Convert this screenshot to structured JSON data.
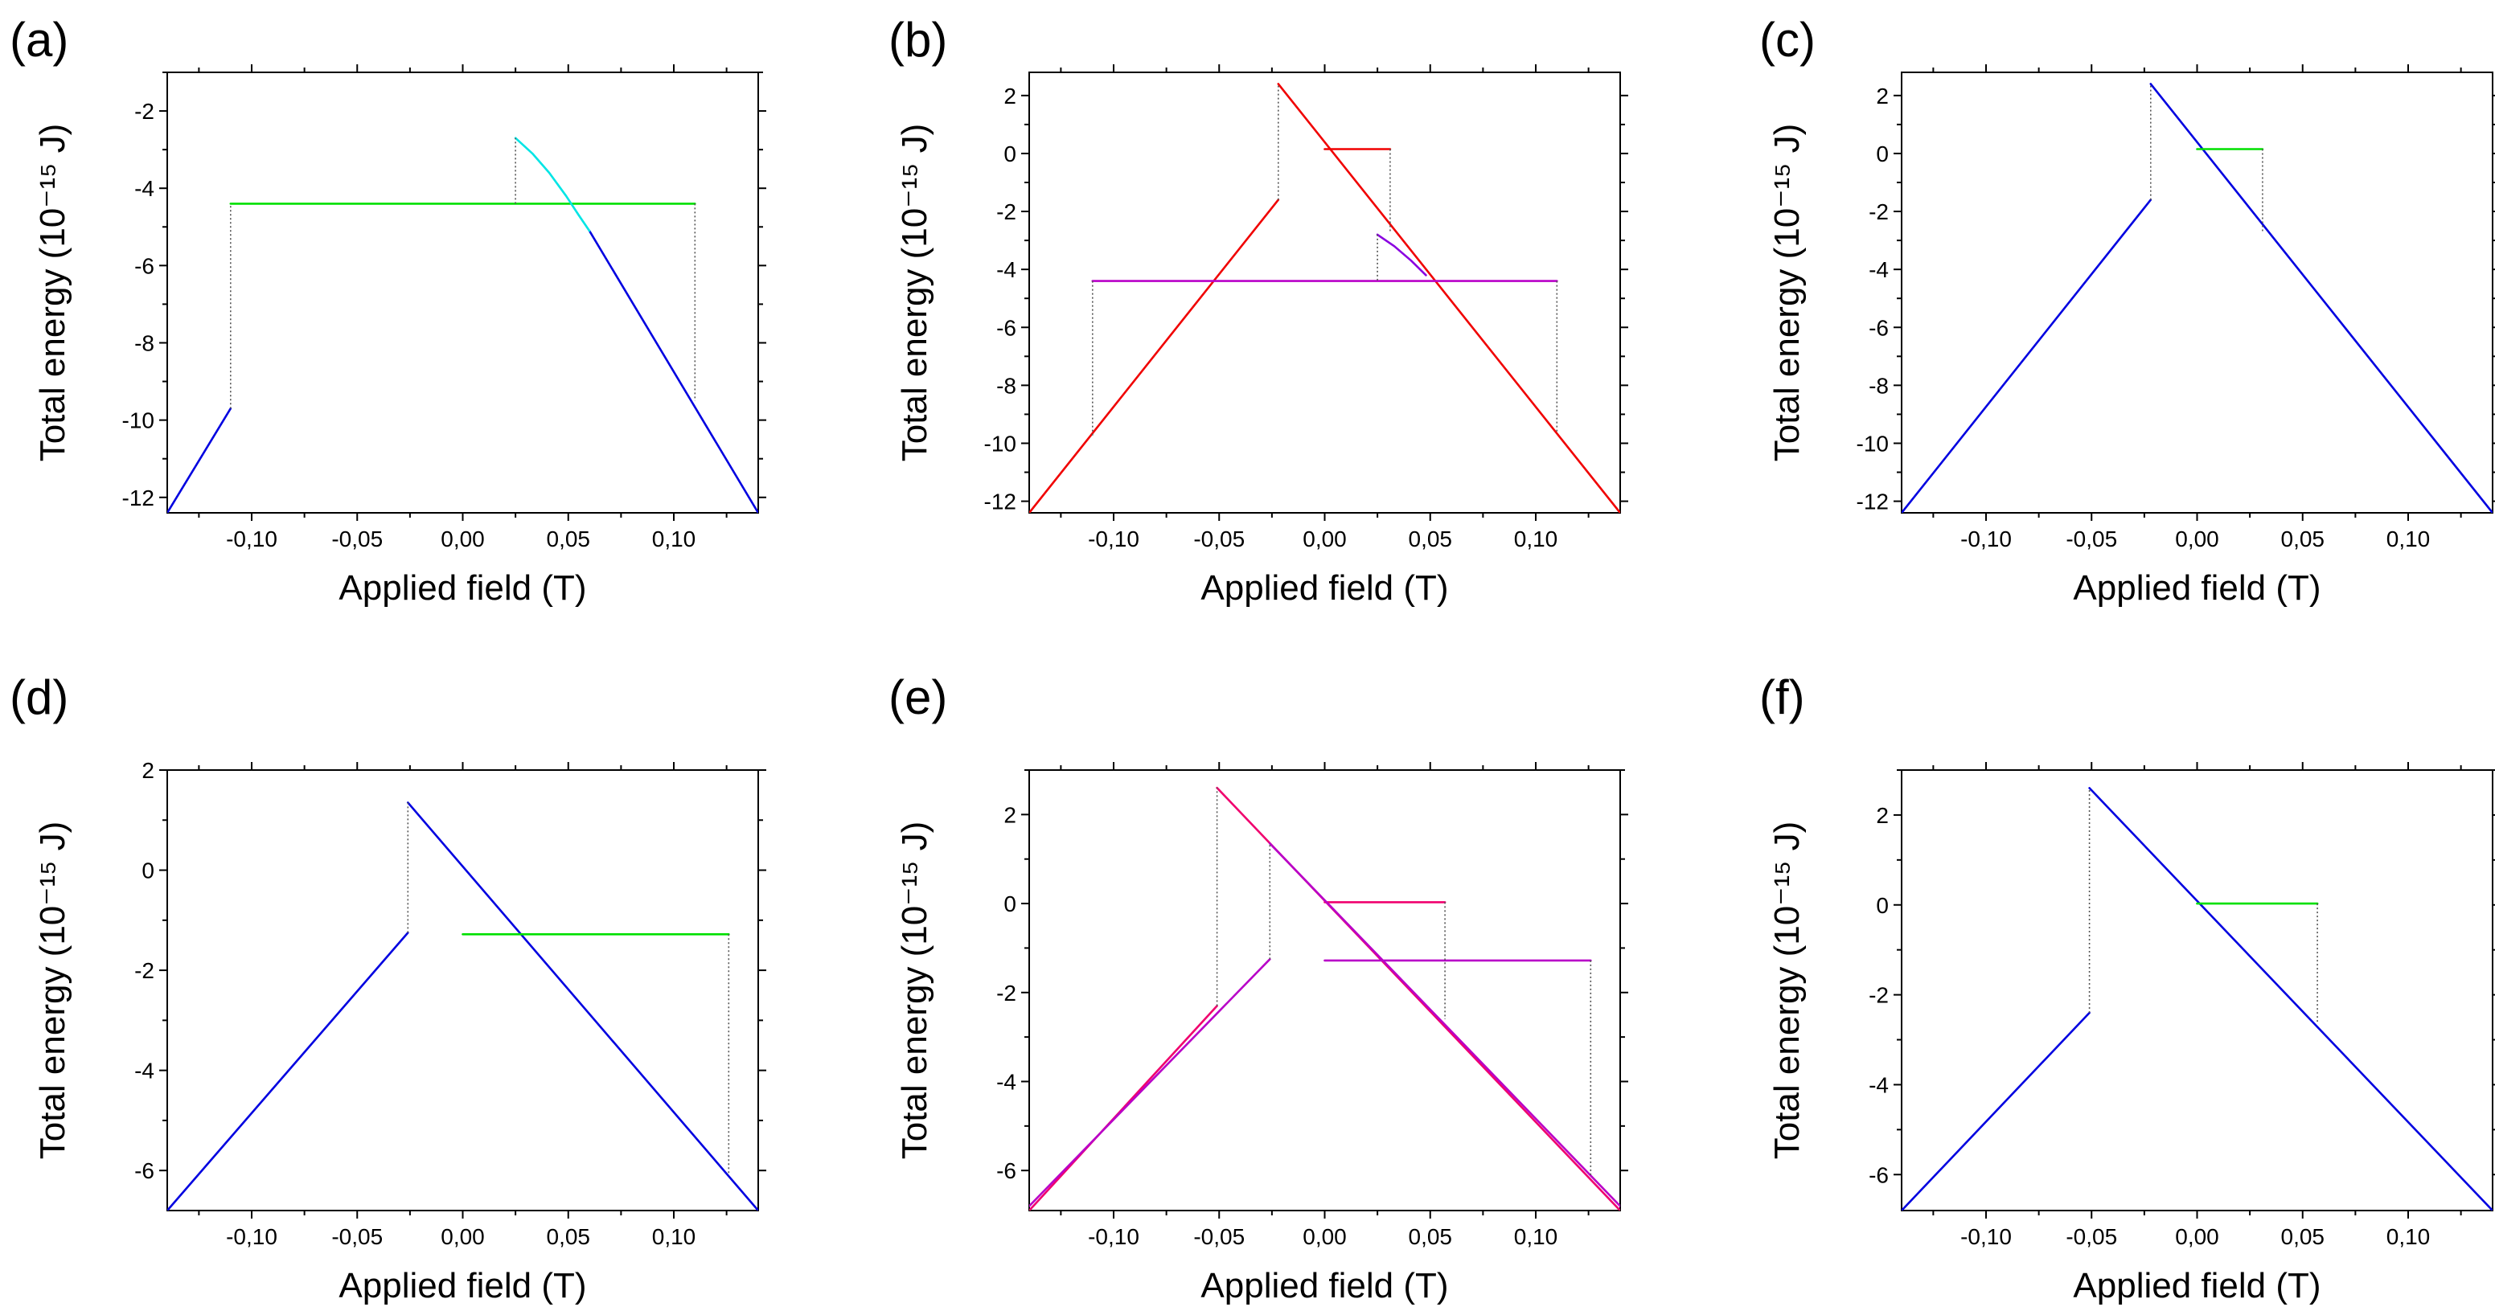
{
  "colors": {
    "blue": "#0000e0",
    "green": "#00e000",
    "cyan": "#00e5e5",
    "red": "#f00000",
    "purple": "#b800c8",
    "darkpurple": "#8a00e0",
    "pink": "#f0006e",
    "grey_dotted": "#555555"
  },
  "chart_data": [
    {
      "id": "a",
      "panel_label": "(a)",
      "type": "line",
      "xlabel": "Applied field (T)",
      "ylabel": "Total energy (10⁻¹⁵ J)",
      "xlim": [
        -0.14,
        0.14
      ],
      "ylim": [
        -12.4,
        -1
      ],
      "xticks": [
        -0.1,
        -0.05,
        0.0,
        0.05,
        0.1
      ],
      "xtick_labels": [
        "-0,10",
        "-0,05",
        "0,00",
        "0,05",
        "0,10"
      ],
      "yticks": [
        -12,
        -10,
        -8,
        -6,
        -4,
        -2
      ],
      "ytick_labels": [
        "-12",
        "-10",
        "-8",
        "-6",
        "-4",
        "-2"
      ],
      "series": [
        {
          "name": "descending branch",
          "color": "blue",
          "style": "solid",
          "x": [
            -0.14,
            -0.11
          ],
          "y": [
            -12.4,
            -9.7
          ]
        },
        {
          "name": "tail",
          "color": "blue",
          "style": "solid",
          "x": [
            0.06,
            0.14
          ],
          "y": [
            -5.1,
            -12.4
          ]
        },
        {
          "name": "plateau",
          "color": "green",
          "style": "solid",
          "x": [
            -0.11,
            0.11
          ],
          "y": [
            -4.4,
            -4.4
          ]
        },
        {
          "name": "curved segment",
          "color": "cyan",
          "style": "solid",
          "x": [
            0.025,
            0.033,
            0.041,
            0.049,
            0.055,
            0.06
          ],
          "y": [
            -2.7,
            -3.1,
            -3.6,
            -4.2,
            -4.7,
            -5.1
          ]
        },
        {
          "name": "jump 1",
          "color": "grey_dotted",
          "style": "dotted",
          "x": [
            -0.11,
            -0.11
          ],
          "y": [
            -9.7,
            -4.4
          ]
        },
        {
          "name": "jump 2",
          "color": "grey_dotted",
          "style": "dotted",
          "x": [
            0.025,
            0.025
          ],
          "y": [
            -4.4,
            -2.7
          ]
        },
        {
          "name": "jump 3",
          "color": "grey_dotted",
          "style": "dotted",
          "x": [
            0.11,
            0.11
          ],
          "y": [
            -4.4,
            -9.5
          ]
        }
      ]
    },
    {
      "id": "b",
      "panel_label": "(b)",
      "type": "line",
      "xlabel": "Applied field (T)",
      "ylabel": "Total energy (10⁻¹⁵ J)",
      "xlim": [
        -0.14,
        0.14
      ],
      "ylim": [
        -12.4,
        2.8
      ],
      "xticks": [
        -0.1,
        -0.05,
        0.0,
        0.05,
        0.1
      ],
      "xtick_labels": [
        "-0,10",
        "-0,05",
        "0,00",
        "0,05",
        "0,10"
      ],
      "yticks": [
        -12,
        -10,
        -8,
        -6,
        -4,
        -2,
        0,
        2
      ],
      "ytick_labels": [
        "-12",
        "-10",
        "-8",
        "-6",
        "-4",
        "-2",
        "0",
        "2"
      ],
      "series": [
        {
          "name": "rising branch",
          "color": "red",
          "style": "solid",
          "x": [
            -0.14,
            -0.022
          ],
          "y": [
            -12.4,
            -1.6
          ]
        },
        {
          "name": "falling branch",
          "color": "red",
          "style": "solid",
          "x": [
            -0.022,
            0.14
          ],
          "y": [
            2.4,
            -12.4
          ]
        },
        {
          "name": "small plateau",
          "color": "red",
          "style": "solid",
          "x": [
            0.0,
            0.031
          ],
          "y": [
            0.15,
            0.15
          ]
        },
        {
          "name": "wide plateau",
          "color": "purple",
          "style": "solid",
          "x": [
            -0.11,
            0.11
          ],
          "y": [
            -4.4,
            -4.4
          ]
        },
        {
          "name": "curved segment",
          "color": "darkpurple",
          "style": "solid",
          "x": [
            0.025,
            0.033,
            0.041,
            0.048
          ],
          "y": [
            -2.8,
            -3.2,
            -3.7,
            -4.2
          ]
        },
        {
          "name": "jump 1",
          "color": "grey_dotted",
          "style": "dotted",
          "x": [
            -0.022,
            -0.022
          ],
          "y": [
            -1.6,
            2.4
          ]
        },
        {
          "name": "jump 2",
          "color": "grey_dotted",
          "style": "dotted",
          "x": [
            0.031,
            0.031
          ],
          "y": [
            0.15,
            -2.7
          ]
        },
        {
          "name": "jump 3",
          "color": "grey_dotted",
          "style": "dotted",
          "x": [
            -0.11,
            -0.11
          ],
          "y": [
            -4.4,
            -9.8
          ]
        },
        {
          "name": "jump 4",
          "color": "grey_dotted",
          "style": "dotted",
          "x": [
            0.025,
            0.025
          ],
          "y": [
            -2.8,
            -4.4
          ]
        },
        {
          "name": "jump 5",
          "color": "grey_dotted",
          "style": "dotted",
          "x": [
            0.11,
            0.11
          ],
          "y": [
            -4.4,
            -9.6
          ]
        }
      ]
    },
    {
      "id": "c",
      "panel_label": "(c)",
      "type": "line",
      "xlabel": "Applied field (T)",
      "ylabel": "Total energy (10⁻¹⁵ J)",
      "xlim": [
        -0.14,
        0.14
      ],
      "ylim": [
        -12.4,
        2.8
      ],
      "xticks": [
        -0.1,
        -0.05,
        0.0,
        0.05,
        0.1
      ],
      "xtick_labels": [
        "-0,10",
        "-0,05",
        "0,00",
        "0,05",
        "0,10"
      ],
      "yticks": [
        -12,
        -10,
        -8,
        -6,
        -4,
        -2,
        0,
        2
      ],
      "ytick_labels": [
        "-12",
        "-10",
        "-8",
        "-6",
        "-4",
        "-2",
        "0",
        "2"
      ],
      "series": [
        {
          "name": "rising branch",
          "color": "blue",
          "style": "solid",
          "x": [
            -0.14,
            -0.022
          ],
          "y": [
            -12.4,
            -1.6
          ]
        },
        {
          "name": "falling branch",
          "color": "blue",
          "style": "solid",
          "x": [
            -0.022,
            0.14
          ],
          "y": [
            2.4,
            -12.4
          ]
        },
        {
          "name": "plateau",
          "color": "green",
          "style": "solid",
          "x": [
            0.0,
            0.031
          ],
          "y": [
            0.15,
            0.15
          ]
        },
        {
          "name": "jump 1",
          "color": "grey_dotted",
          "style": "dotted",
          "x": [
            -0.022,
            -0.022
          ],
          "y": [
            -1.6,
            2.4
          ]
        },
        {
          "name": "jump 2",
          "color": "grey_dotted",
          "style": "dotted",
          "x": [
            0.031,
            0.031
          ],
          "y": [
            0.15,
            -2.7
          ]
        }
      ]
    },
    {
      "id": "d",
      "panel_label": "(d)",
      "type": "line",
      "xlabel": "Applied field (T)",
      "ylabel": "Total energy (10⁻¹⁵ J)",
      "xlim": [
        -0.14,
        0.14
      ],
      "ylim": [
        -6.8,
        2
      ],
      "xticks": [
        -0.1,
        -0.05,
        0.0,
        0.05,
        0.1
      ],
      "xtick_labels": [
        "-0,10",
        "-0,05",
        "0,00",
        "0,05",
        "0,10"
      ],
      "yticks": [
        -6,
        -4,
        -2,
        0,
        2
      ],
      "ytick_labels": [
        "-6",
        "-4",
        "-2",
        "0",
        "2"
      ],
      "series": [
        {
          "name": "rising branch",
          "color": "blue",
          "style": "solid",
          "x": [
            -0.14,
            -0.026
          ],
          "y": [
            -6.8,
            -1.25
          ]
        },
        {
          "name": "falling branch",
          "color": "blue",
          "style": "solid",
          "x": [
            -0.026,
            0.14
          ],
          "y": [
            1.35,
            -6.8
          ]
        },
        {
          "name": "plateau",
          "color": "green",
          "style": "solid",
          "x": [
            0.0,
            0.126
          ],
          "y": [
            -1.28,
            -1.28
          ]
        },
        {
          "name": "jump 1",
          "color": "grey_dotted",
          "style": "dotted",
          "x": [
            -0.026,
            -0.026
          ],
          "y": [
            -1.25,
            1.35
          ]
        },
        {
          "name": "jump 2",
          "color": "grey_dotted",
          "style": "dotted",
          "x": [
            0.126,
            0.126
          ],
          "y": [
            -1.28,
            -6.1
          ]
        }
      ]
    },
    {
      "id": "e",
      "panel_label": "(e)",
      "type": "line",
      "xlabel": "Applied field (T)",
      "ylabel": "Total energy (10⁻¹⁵ J)",
      "xlim": [
        -0.14,
        0.14
      ],
      "ylim": [
        -6.9,
        3
      ],
      "xticks": [
        -0.1,
        -0.05,
        0.0,
        0.05,
        0.1
      ],
      "xtick_labels": [
        "-0,10",
        "-0,05",
        "0,00",
        "0,05",
        "0,10"
      ],
      "yticks": [
        -6,
        -4,
        -2,
        0,
        2
      ],
      "ytick_labels": [
        "-6",
        "-4",
        "-2",
        "0",
        "2"
      ],
      "series": [
        {
          "name": "rising branch 1",
          "color": "pink",
          "style": "solid",
          "x": [
            -0.14,
            -0.051
          ],
          "y": [
            -6.9,
            -2.3
          ]
        },
        {
          "name": "falling branch 1",
          "color": "pink",
          "style": "solid",
          "x": [
            -0.051,
            0.14
          ],
          "y": [
            2.6,
            -6.9
          ]
        },
        {
          "name": "plateau 1",
          "color": "pink",
          "style": "solid",
          "x": [
            0.0,
            0.057
          ],
          "y": [
            0.03,
            0.03
          ]
        },
        {
          "name": "rising branch 2",
          "color": "purple",
          "style": "solid",
          "x": [
            -0.14,
            -0.026
          ],
          "y": [
            -6.8,
            -1.25
          ]
        },
        {
          "name": "falling branch 2",
          "color": "purple",
          "style": "solid",
          "x": [
            -0.026,
            0.14
          ],
          "y": [
            1.35,
            -6.8
          ]
        },
        {
          "name": "plateau 2",
          "color": "purple",
          "style": "solid",
          "x": [
            0.0,
            0.126
          ],
          "y": [
            -1.28,
            -1.28
          ]
        },
        {
          "name": "jump 1",
          "color": "grey_dotted",
          "style": "dotted",
          "x": [
            -0.051,
            -0.051
          ],
          "y": [
            -2.3,
            2.6
          ]
        },
        {
          "name": "jump 2",
          "color": "grey_dotted",
          "style": "dotted",
          "x": [
            -0.026,
            -0.026
          ],
          "y": [
            -1.25,
            1.35
          ]
        },
        {
          "name": "jump 3",
          "color": "grey_dotted",
          "style": "dotted",
          "x": [
            0.057,
            0.057
          ],
          "y": [
            0.03,
            -2.6
          ]
        },
        {
          "name": "jump 4",
          "color": "grey_dotted",
          "style": "dotted",
          "x": [
            0.126,
            0.126
          ],
          "y": [
            -1.28,
            -6.1
          ]
        }
      ]
    },
    {
      "id": "f",
      "panel_label": "(f)",
      "type": "line",
      "xlabel": "Applied field (T)",
      "ylabel": "Total energy (10⁻¹⁵ J)",
      "xlim": [
        -0.14,
        0.14
      ],
      "ylim": [
        -6.8,
        3
      ],
      "xticks": [
        -0.1,
        -0.05,
        0.0,
        0.05,
        0.1
      ],
      "xtick_labels": [
        "-0,10",
        "-0,05",
        "0,00",
        "0,05",
        "0,10"
      ],
      "yticks": [
        -6,
        -4,
        -2,
        0,
        2
      ],
      "ytick_labels": [
        "-6",
        "-4",
        "-2",
        "0",
        "2"
      ],
      "series": [
        {
          "name": "rising branch",
          "color": "blue",
          "style": "solid",
          "x": [
            -0.14,
            -0.051
          ],
          "y": [
            -6.8,
            -2.4
          ]
        },
        {
          "name": "falling branch",
          "color": "blue",
          "style": "solid",
          "x": [
            -0.051,
            0.14
          ],
          "y": [
            2.6,
            -6.8
          ]
        },
        {
          "name": "plateau",
          "color": "green",
          "style": "solid",
          "x": [
            0.0,
            0.057
          ],
          "y": [
            0.03,
            0.03
          ]
        },
        {
          "name": "jump 1",
          "color": "grey_dotted",
          "style": "dotted",
          "x": [
            -0.051,
            -0.051
          ],
          "y": [
            -2.4,
            2.6
          ]
        },
        {
          "name": "jump 2",
          "color": "grey_dotted",
          "style": "dotted",
          "x": [
            0.057,
            0.057
          ],
          "y": [
            0.03,
            -2.6
          ]
        }
      ]
    }
  ]
}
